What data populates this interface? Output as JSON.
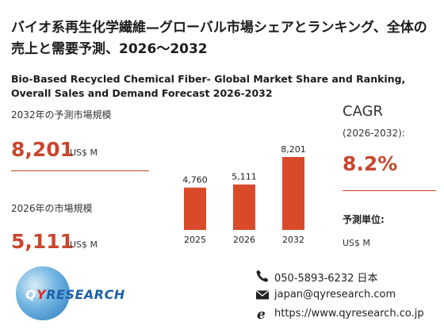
{
  "title_jp": "バイオ系再生化学繊維—グローバル市場シェアとランキング、全体の売上と需要予測、2026～2032",
  "title_en": "Bio-Based Recycled Chemical Fiber- Global Market Share and Ranking, Overall Sales and Demand Forecast 2026-2032",
  "forecast": {
    "label": "2032年の予測市場規模",
    "value": "8,201",
    "unit": "US$ M"
  },
  "current": {
    "label": "2026年の市場規模",
    "value": "5,111",
    "unit": "US$ M"
  },
  "cagr": {
    "label": "CAGR",
    "range": "(2026-2032):",
    "value": "8.2%"
  },
  "forecast_unit": {
    "label": "予測単位:",
    "value": "US$ M"
  },
  "chart_data": {
    "type": "bar",
    "categories": [
      "2025",
      "2026",
      "2032"
    ],
    "values": [
      4760,
      5111,
      8201
    ],
    "value_labels": [
      "4,760",
      "5,111",
      "8,201"
    ],
    "ylim": [
      0,
      8201
    ],
    "color": "#d94a2b"
  },
  "logo": {
    "q": "Q",
    "y": "Y",
    "rest": "RESEARCH"
  },
  "contact": {
    "phone": "050-5893-6232 日本",
    "email": "japan@qyresearch.com",
    "web": "https://www.qyresearch.co.jp"
  },
  "icons": [
    "phone-icon",
    "mail-icon",
    "web-icon"
  ],
  "colors": {
    "accent": "#c8462d",
    "bar": "#d94a2b"
  }
}
